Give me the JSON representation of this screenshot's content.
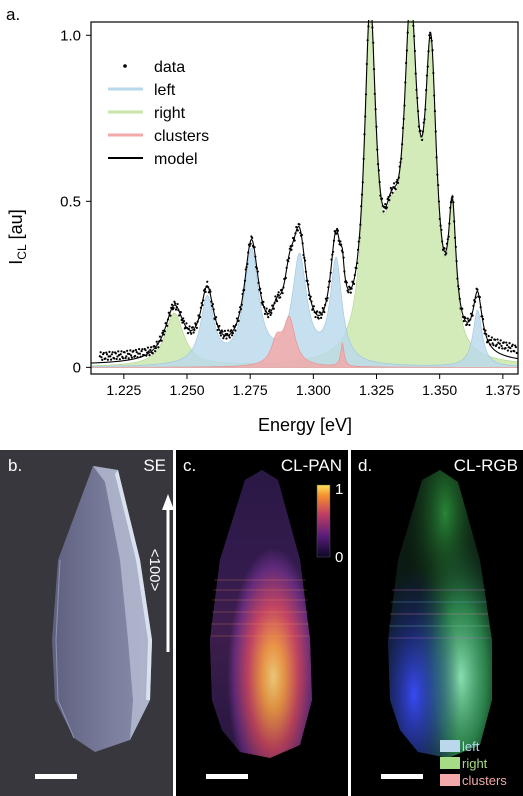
{
  "panel_a": {
    "label": "a.",
    "chart_data": {
      "type": "line",
      "xlabel": "Energy [eV]",
      "ylabel_main": "I",
      "ylabel_sub": "CL",
      "ylabel_unit": "[au]",
      "xlim": [
        1.212,
        1.381
      ],
      "ylim": [
        -0.02,
        1.04
      ],
      "xticks": [
        1.225,
        1.25,
        1.275,
        1.3,
        1.325,
        1.35,
        1.375
      ],
      "xtick_labels": [
        "1.225",
        "1.250",
        "1.275",
        "1.300",
        "1.325",
        "1.350",
        "1.375"
      ],
      "yticks": [
        0,
        0.5,
        1.0
      ],
      "ytick_labels": [
        "0",
        "0.5",
        "1.0"
      ],
      "legend": [
        "data",
        "left",
        "right",
        "clusters",
        "model"
      ],
      "legend_position": "top-left",
      "colors": {
        "left": "#b9d8ec",
        "right": "#c8e6a7",
        "clusters": "#f2a9a9",
        "model": "#000000",
        "data": "#000000"
      },
      "peaks": {
        "right": [
          {
            "center": 1.245,
            "amplitude": 0.16,
            "width": 0.0045
          },
          {
            "center": 1.3225,
            "amplitude": 0.98,
            "width": 0.0028
          },
          {
            "center": 1.331,
            "amplitude": 0.25,
            "width": 0.004
          },
          {
            "center": 1.3385,
            "amplitude": 0.93,
            "width": 0.0032
          },
          {
            "center": 1.3465,
            "amplitude": 0.82,
            "width": 0.0028
          },
          {
            "center": 1.355,
            "amplitude": 0.37,
            "width": 0.0018
          }
        ],
        "left": [
          {
            "center": 1.258,
            "amplitude": 0.2,
            "width": 0.0032
          },
          {
            "center": 1.2755,
            "amplitude": 0.34,
            "width": 0.0035
          },
          {
            "center": 1.2945,
            "amplitude": 0.32,
            "width": 0.0035
          },
          {
            "center": 1.309,
            "amplitude": 0.31,
            "width": 0.0028
          },
          {
            "center": 1.365,
            "amplitude": 0.17,
            "width": 0.0022
          }
        ],
        "clusters": [
          {
            "center": 1.2855,
            "amplitude": 0.07,
            "width": 0.0025
          },
          {
            "center": 1.2905,
            "amplitude": 0.14,
            "width": 0.0028
          },
          {
            "center": 1.3115,
            "amplitude": 0.07,
            "width": 0.0008
          }
        ]
      }
    }
  },
  "panel_b": {
    "label": "b.",
    "tag": "SE",
    "arrow_label": "<100>"
  },
  "panel_c": {
    "label": "c.",
    "tag": "CL-PAN",
    "colorbar_max": "1",
    "colorbar_min": "0"
  },
  "panel_d": {
    "label": "d.",
    "tag": "CL-RGB",
    "legend": [
      "left",
      "right",
      "clusters"
    ],
    "legend_colors": [
      "#b9d8ec",
      "#a6dc86",
      "#f2a9a9"
    ]
  }
}
